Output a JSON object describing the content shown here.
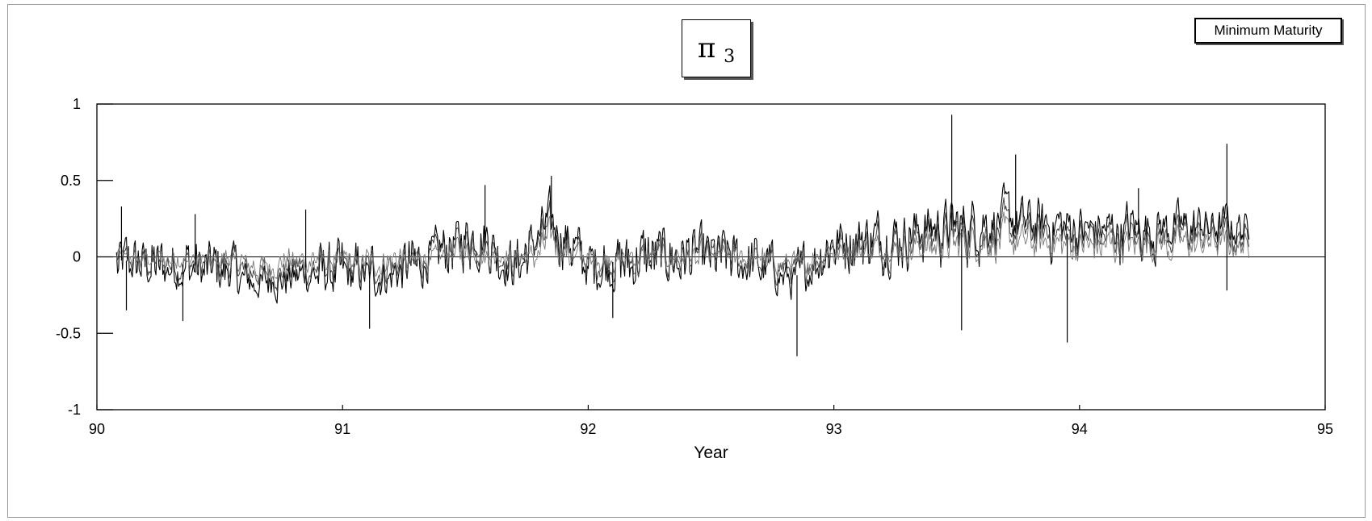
{
  "chart_data": {
    "type": "line",
    "title_symbol": "π",
    "title_subscript": "3",
    "legend_label": "Minimum Maturity",
    "xlabel": "Year",
    "ylabel": "",
    "xlim": [
      90,
      95
    ],
    "ylim": [
      -1,
      1
    ],
    "x_ticks": [
      90,
      91,
      92,
      93,
      94,
      95
    ],
    "y_ticks": [
      1,
      0.5,
      0,
      -0.5,
      -1
    ],
    "y_tick_labels": [
      "1",
      "0.5",
      "0",
      "-0.5",
      "-1"
    ],
    "x_range_data": [
      90.08,
      94.69
    ],
    "series_count": 3,
    "segments": [
      {
        "x": 90.08,
        "mean": -0.02,
        "amp": 0.12
      },
      {
        "x": 90.3,
        "mean": -0.05,
        "amp": 0.13
      },
      {
        "x": 90.55,
        "mean": -0.06,
        "amp": 0.14
      },
      {
        "x": 90.65,
        "mean": -0.15,
        "amp": 0.12
      },
      {
        "x": 90.85,
        "mean": -0.07,
        "amp": 0.14
      },
      {
        "x": 91.1,
        "mean": -0.1,
        "amp": 0.15
      },
      {
        "x": 91.3,
        "mean": -0.05,
        "amp": 0.13
      },
      {
        "x": 91.55,
        "mean": 0.13,
        "amp": 0.16
      },
      {
        "x": 91.7,
        "mean": -0.05,
        "amp": 0.13
      },
      {
        "x": 91.85,
        "mean": 0.18,
        "amp": 0.18
      },
      {
        "x": 92.0,
        "mean": -0.05,
        "amp": 0.14
      },
      {
        "x": 92.3,
        "mean": 0.0,
        "amp": 0.16
      },
      {
        "x": 92.6,
        "mean": 0.0,
        "amp": 0.14
      },
      {
        "x": 92.85,
        "mean": -0.12,
        "amp": 0.12
      },
      {
        "x": 93.0,
        "mean": 0.08,
        "amp": 0.15
      },
      {
        "x": 93.3,
        "mean": 0.12,
        "amp": 0.17
      },
      {
        "x": 93.5,
        "mean": 0.18,
        "amp": 0.19
      },
      {
        "x": 93.75,
        "mean": 0.2,
        "amp": 0.18
      },
      {
        "x": 94.0,
        "mean": 0.14,
        "amp": 0.17
      },
      {
        "x": 94.3,
        "mean": 0.15,
        "amp": 0.16
      },
      {
        "x": 94.6,
        "mean": 0.17,
        "amp": 0.14
      },
      {
        "x": 94.69,
        "mean": 0.13,
        "amp": 0.1
      }
    ],
    "spikes": [
      {
        "x": 90.1,
        "y": 0.33
      },
      {
        "x": 90.12,
        "y": -0.35
      },
      {
        "x": 90.35,
        "y": -0.42
      },
      {
        "x": 90.4,
        "y": 0.28
      },
      {
        "x": 90.85,
        "y": 0.31
      },
      {
        "x": 91.11,
        "y": -0.47
      },
      {
        "x": 91.58,
        "y": 0.47
      },
      {
        "x": 91.85,
        "y": 0.53
      },
      {
        "x": 92.1,
        "y": -0.4
      },
      {
        "x": 92.85,
        "y": -0.65
      },
      {
        "x": 93.48,
        "y": 0.93
      },
      {
        "x": 93.52,
        "y": -0.48
      },
      {
        "x": 93.74,
        "y": 0.67
      },
      {
        "x": 93.95,
        "y": -0.56
      },
      {
        "x": 94.24,
        "y": 0.45
      },
      {
        "x": 94.6,
        "y": 0.74
      },
      {
        "x": 94.6,
        "y": -0.22
      }
    ]
  }
}
